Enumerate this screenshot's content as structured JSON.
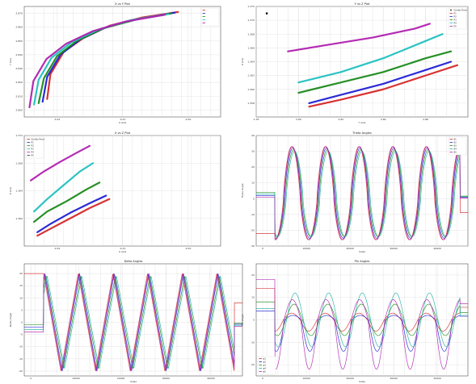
{
  "figure": {
    "background": "#ffffff"
  },
  "chart_data": [
    {
      "id": "xy",
      "type": "line",
      "title": "X vs Y Plot",
      "xlabel": "X Axis",
      "ylabel": "Y Axis",
      "xlim": [
        -0.325,
        -0.295
      ],
      "ylim": [
        2.795,
        2.875
      ],
      "xticks": [
        "-0.32",
        "-0.31",
        "-0.30"
      ],
      "yticks": [
        "2.800",
        "2.810",
        "2.820",
        "2.830",
        "2.840",
        "2.850",
        "2.860",
        "2.870"
      ],
      "grid": true,
      "legend_position": "top-right",
      "legend": [
        "",
        "",
        "",
        "",
        ""
      ],
      "series": [
        {
          "color": "#d62728",
          "x": [
            -0.3215,
            -0.321,
            -0.319,
            -0.316,
            -0.312,
            -0.307,
            -0.3015
          ],
          "y": [
            2.808,
            2.826,
            2.842,
            2.852,
            2.861,
            2.867,
            2.871
          ]
        },
        {
          "color": "#1f1fd6",
          "x": [
            -0.3222,
            -0.3215,
            -0.3195,
            -0.3165,
            -0.3125,
            -0.3075,
            -0.302
          ],
          "y": [
            2.806,
            2.824,
            2.84,
            2.851,
            2.86,
            2.866,
            2.8705
          ]
        },
        {
          "color": "#1a8a1a",
          "x": [
            -0.3228,
            -0.322,
            -0.32,
            -0.317,
            -0.313,
            -0.308,
            -0.3025
          ],
          "y": [
            2.805,
            2.823,
            2.839,
            2.85,
            2.859,
            2.8655,
            2.87
          ]
        },
        {
          "color": "#20c0c0",
          "x": [
            -0.3235,
            -0.3228,
            -0.3208,
            -0.3178,
            -0.3138,
            -0.3088,
            -0.303
          ],
          "y": [
            2.804,
            2.822,
            2.838,
            2.849,
            2.858,
            2.865,
            2.8695
          ]
        },
        {
          "color": "#b020b0",
          "x": [
            -0.3242,
            -0.3236,
            -0.3216,
            -0.3186,
            -0.3146,
            -0.3096,
            -0.3035
          ],
          "y": [
            2.802,
            2.821,
            2.837,
            2.848,
            2.857,
            2.864,
            2.869
          ]
        }
      ]
    },
    {
      "id": "yz",
      "type": "line",
      "title": "Y vs Z Plot",
      "xlabel": "Y Axis",
      "ylabel": "Z Axis",
      "xlim": [
        2.78,
        2.88
      ],
      "ylim": [
        1.356,
        1.372
      ],
      "xticks": [
        "2.78",
        "2.80",
        "2.82",
        "2.84",
        "2.86"
      ],
      "yticks": [
        "1.358",
        "1.360",
        "1.362",
        "1.364",
        "1.366",
        "1.368",
        "1.370",
        "1.372"
      ],
      "grid": true,
      "legend_position": "top-right",
      "legend": [
        "Golden Point",
        "P1",
        "P2",
        "P3",
        "P4",
        "P5"
      ],
      "golden_point": {
        "x": 2.785,
        "y": 1.371
      },
      "series": [
        {
          "color": "#d62728",
          "x": [
            2.805,
            2.82,
            2.84,
            2.86,
            2.875
          ],
          "y": [
            1.3575,
            1.3585,
            1.36,
            1.362,
            1.3635
          ]
        },
        {
          "color": "#1f1fd6",
          "x": [
            2.805,
            2.82,
            2.84,
            2.86,
            2.872
          ],
          "y": [
            1.358,
            1.3592,
            1.3608,
            1.3628,
            1.364
          ]
        },
        {
          "color": "#1a8a1a",
          "x": [
            2.8,
            2.82,
            2.84,
            2.86,
            2.872
          ],
          "y": [
            1.3595,
            1.361,
            1.3625,
            1.3645,
            1.3655
          ]
        },
        {
          "color": "#20c0c0",
          "x": [
            2.8,
            2.82,
            2.84,
            2.86,
            2.868
          ],
          "y": [
            1.361,
            1.3625,
            1.3645,
            1.367,
            1.368
          ]
        },
        {
          "color": "#b020b0",
          "x": [
            2.795,
            2.815,
            2.835,
            2.855,
            2.862
          ],
          "y": [
            1.3655,
            1.3665,
            1.3675,
            1.3688,
            1.3695
          ]
        }
      ]
    },
    {
      "id": "xz",
      "type": "line",
      "title": "X vs Z Plot",
      "xlabel": "X Axis",
      "ylabel": "Z Axis",
      "xlim": [
        -0.325,
        -0.295
      ],
      "ylim": [
        1.356,
        1.372
      ],
      "xticks": [
        "-0.32",
        "-0.31",
        "-0.30"
      ],
      "yticks": [
        "1.360",
        "1.364",
        "1.368",
        "1.372"
      ],
      "grid": true,
      "legend_position": "top-left",
      "legend": [
        "Golden Point",
        "P1",
        "P2",
        "P3",
        "P4",
        "P5"
      ],
      "series": [
        {
          "color": "#d62728",
          "x": [
            -0.323,
            -0.321,
            -0.318,
            -0.315,
            -0.312
          ],
          "y": [
            1.3575,
            1.3585,
            1.36,
            1.3615,
            1.3628
          ]
        },
        {
          "color": "#1f1fd6",
          "x": [
            -0.323,
            -0.321,
            -0.318,
            -0.315,
            -0.3125
          ],
          "y": [
            1.358,
            1.3592,
            1.3608,
            1.3622,
            1.3633
          ]
        },
        {
          "color": "#1a8a1a",
          "x": [
            -0.3235,
            -0.3215,
            -0.3185,
            -0.3155,
            -0.3135
          ],
          "y": [
            1.3595,
            1.361,
            1.3625,
            1.3642,
            1.3652
          ]
        },
        {
          "color": "#20c0c0",
          "x": [
            -0.3235,
            -0.3215,
            -0.319,
            -0.3165,
            -0.3145
          ],
          "y": [
            1.361,
            1.3628,
            1.3648,
            1.3668,
            1.368
          ]
        },
        {
          "color": "#b020b0",
          "x": [
            -0.324,
            -0.322,
            -0.3195,
            -0.317,
            -0.315
          ],
          "y": [
            1.3655,
            1.3668,
            1.3682,
            1.3695,
            1.3705
          ]
        }
      ]
    },
    {
      "id": "theta",
      "type": "line",
      "title": "Theta Angles",
      "xlabel": "Index",
      "ylabel": "Theta Angle",
      "xlim": [
        -1500,
        47000
      ],
      "ylim": [
        -30,
        40
      ],
      "xticks": [
        "0",
        "10000",
        "20000",
        "30000",
        "40000"
      ],
      "yticks": [
        "-30",
        "-20",
        "-10",
        "0",
        "10",
        "20",
        "30",
        "40"
      ],
      "grid": true,
      "legend_position": "top-right",
      "legend": [
        "θ1",
        "θ2",
        "θ3",
        "θ4",
        "θ5"
      ],
      "period": 7700,
      "start": 2800,
      "series": [
        {
          "color": "#d62728",
          "init": -22,
          "peak": 33,
          "trough": -26,
          "offset": 0
        },
        {
          "color": "#1f1fd6",
          "init": 2,
          "peak": 32,
          "trough": -25,
          "offset": 250
        },
        {
          "color": "#1a8a1a",
          "init": 4,
          "peak": 31,
          "trough": -24,
          "offset": 450
        },
        {
          "color": "#20b0a0",
          "init": 3,
          "peak": 30,
          "trough": -24,
          "offset": 650
        },
        {
          "color": "#b020b0",
          "init": 1,
          "peak": 33,
          "trough": -26,
          "offset": 120
        }
      ]
    },
    {
      "id": "delta",
      "type": "line",
      "title": "Delta Angles",
      "xlabel": "Index",
      "ylabel": "Delta Angle",
      "xlim": [
        -1500,
        47000
      ],
      "ylim": [
        -22,
        24
      ],
      "xticks": [
        "0",
        "10000",
        "20000",
        "30000",
        "40000"
      ],
      "yticks": [
        "-20",
        "-15",
        "-10",
        "-5",
        "0",
        "5",
        "10",
        "15",
        "20"
      ],
      "grid": true,
      "legend_position": "none",
      "period": 7700,
      "start": 2800,
      "series": [
        {
          "color": "#d62728",
          "init": 20,
          "peak": 20,
          "trough": -20,
          "offset": 0
        },
        {
          "color": "#1f1fd6",
          "init": -2,
          "peak": 20,
          "trough": -20,
          "offset": 300
        },
        {
          "color": "#1a8a1a",
          "init": -1,
          "peak": 19,
          "trough": -19,
          "offset": 550
        },
        {
          "color": "#20b0a0",
          "init": -3,
          "peak": 19,
          "trough": -19,
          "offset": 800
        },
        {
          "color": "#b020b0",
          "init": -4,
          "peak": 20,
          "trough": -20,
          "offset": 150
        }
      ]
    },
    {
      "id": "phi",
      "type": "line",
      "title": "Phi Angles",
      "xlabel": "Index",
      "ylabel": "Phi Angle",
      "xlim": [
        -1500,
        47000
      ],
      "ylim": [
        -25,
        25
      ],
      "xticks": [
        "0",
        "10000",
        "20000",
        "30000",
        "40000"
      ],
      "yticks": [
        "-20",
        "-10",
        "0",
        "10",
        "20"
      ],
      "grid": true,
      "legend_position": "bottom-left",
      "legend": [
        "φ1",
        "φ2",
        "φ3",
        "φ4",
        "φ5"
      ],
      "period": 7700,
      "start": 2800,
      "series": [
        {
          "color": "#d62728",
          "init": 14,
          "peak": 3,
          "trough": -5,
          "offset": 0
        },
        {
          "color": "#1f1fd6",
          "init": 4,
          "peak": 2,
          "trough": -14,
          "offset": 300
        },
        {
          "color": "#1a8a1a",
          "init": 8,
          "peak": 7,
          "trough": -7,
          "offset": 550
        },
        {
          "color": "#20b0a0",
          "init": 5,
          "peak": 12,
          "trough": -12,
          "offset": 750
        },
        {
          "color": "#b020b0",
          "init": 18,
          "peak": 9,
          "trough": -22,
          "offset": 150
        }
      ]
    }
  ]
}
